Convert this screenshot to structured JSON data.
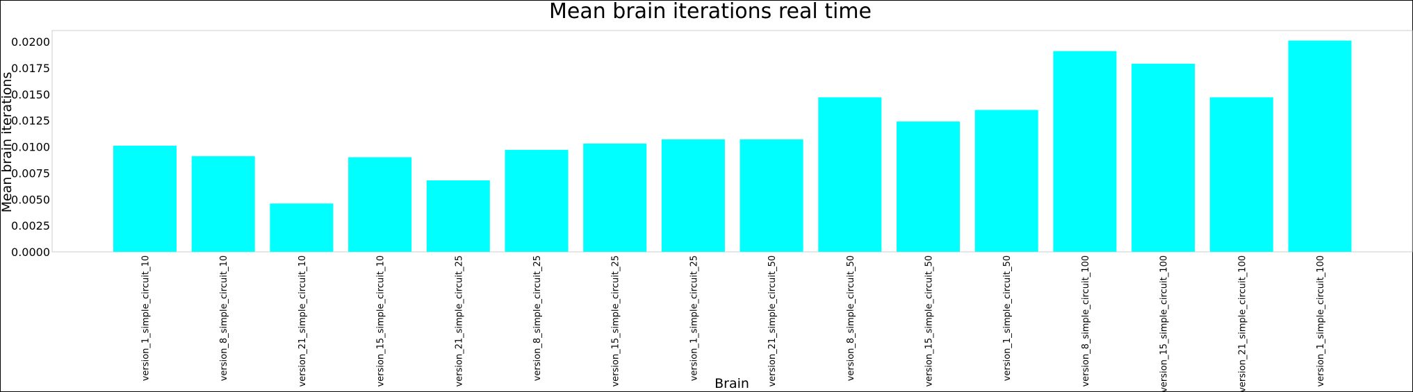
{
  "chart_data": {
    "type": "bar",
    "title": "Mean brain iterations real time",
    "xlabel": "Brain",
    "ylabel": "Mean brain iterations",
    "ylim": [
      0,
      0.021
    ],
    "yticks": [
      "0.0000",
      "0.0025",
      "0.0050",
      "0.0075",
      "0.0100",
      "0.0125",
      "0.0150",
      "0.0175",
      "0.0200"
    ],
    "grid": false,
    "bar_color": "#00ffff",
    "categories": [
      "version_1_simple_circuit_10",
      "version_8_simple_circuit_10",
      "version_21_simple_circuit_10",
      "version_15_simple_circuit_10",
      "version_21_simple_circuit_25",
      "version_8_simple_circuit_25",
      "version_15_simple_circuit_25",
      "version_1_simple_circuit_25",
      "version_21_simple_circuit_50",
      "version_8_simple_circuit_50",
      "version_15_simple_circuit_50",
      "version_1_simple_circuit_50",
      "version_8_simple_circuit_100",
      "version_15_simple_circuit_100",
      "version_21_simple_circuit_100",
      "version_1_simple_circuit_100"
    ],
    "values": [
      0.0101,
      0.0091,
      0.0046,
      0.009,
      0.0068,
      0.0097,
      0.0103,
      0.0107,
      0.0107,
      0.0147,
      0.0124,
      0.0135,
      0.0191,
      0.0179,
      0.0147,
      0.0201
    ]
  }
}
